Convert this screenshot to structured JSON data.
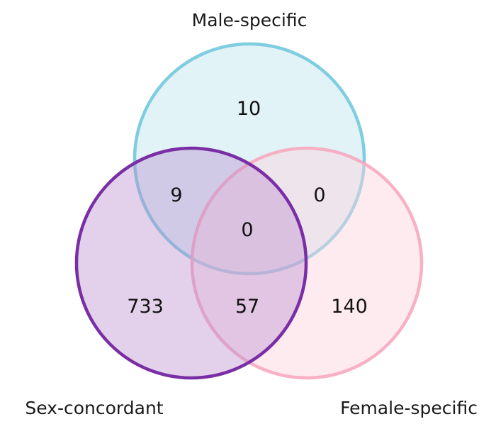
{
  "sets": [
    {
      "name": "Male-specific",
      "stroke": "#7fcde0",
      "fill": "#bfe4f0"
    },
    {
      "name": "Sex-concordant",
      "stroke": "#7a2ea6",
      "fill": "#b98ccc"
    },
    {
      "name": "Female-specific",
      "stroke": "#f7a9bf",
      "fill": "#fcd3dd"
    }
  ],
  "regions": {
    "male_only": "10",
    "concordant_only": "733",
    "female_only": "140",
    "male_concordant": "9",
    "male_female": "0",
    "concordant_female": "57",
    "all_three": "0"
  }
}
